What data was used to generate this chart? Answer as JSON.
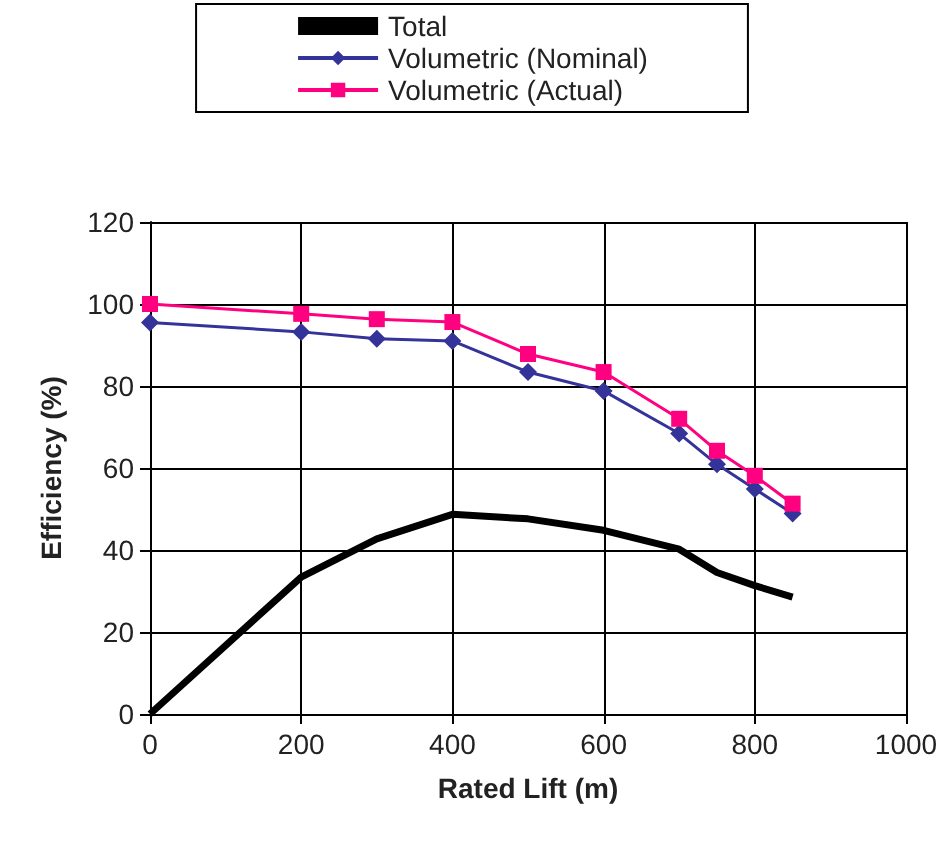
{
  "chart_data": {
    "type": "line",
    "xlabel": "Rated Lift (m)",
    "ylabel": "Efficiency (%)",
    "x": [
      0,
      200,
      300,
      400,
      500,
      600,
      700,
      750,
      800,
      850
    ],
    "series": [
      {
        "name": "Total",
        "color": "#000000",
        "marker": "none",
        "values": [
          0,
          33.4,
          42.7,
          48.7,
          47.6,
          44.8,
          40.2,
          34.5,
          31.3,
          28.5
        ]
      },
      {
        "name": "Volumetric (Nominal)",
        "color": "#333399",
        "marker": "diamond",
        "values": [
          95.5,
          93.2,
          91.5,
          91,
          83.4,
          78.8,
          68.4,
          60.9,
          54.9,
          48.9
        ]
      },
      {
        "name": "Volumetric (Actual)",
        "color": "#ff0080",
        "marker": "square",
        "values": [
          100,
          97.6,
          96.3,
          95.6,
          87.8,
          83.4,
          72,
          64.2,
          58.1,
          51.3
        ]
      }
    ],
    "xlim": [
      0,
      1000
    ],
    "xticks": [
      0,
      200,
      400,
      600,
      800,
      1000
    ],
    "ylim": [
      0,
      120
    ],
    "yticks": [
      0,
      20,
      40,
      60,
      80,
      100,
      120
    ],
    "grid": true,
    "legend": "top",
    "line_style": "solid"
  }
}
